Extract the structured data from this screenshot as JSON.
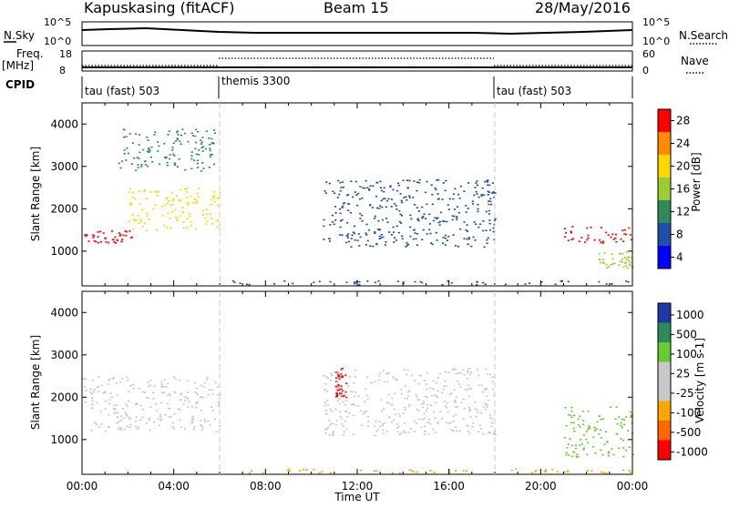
{
  "header": {
    "station": "Kapuskasing (fitACF)",
    "beam": "Beam 15",
    "date": "28/May/2016"
  },
  "strip_panels": {
    "nsky_label": "N.Sky",
    "nsky_ticks": [
      "10^5",
      "10^0"
    ],
    "nsearch_label": "N.Search",
    "nsearch_ticks": [
      "10^5",
      "10^0"
    ],
    "freq_label": "Freq.",
    "freq_unit": "[MHz]",
    "freq_ticks": [
      "18",
      "8"
    ],
    "nave_label": "Nave",
    "nave_ticks": [
      "60",
      "0"
    ],
    "cpid_label": "CPID",
    "cpid_segments": [
      {
        "label": "tau (fast) 503",
        "start_h": 0,
        "end_h": 6
      },
      {
        "label": "themis 3300",
        "start_h": 6,
        "end_h": 18
      },
      {
        "label": "tau (fast) 503",
        "start_h": 18,
        "end_h": 24
      }
    ]
  },
  "chart_data": [
    {
      "type": "heatmap",
      "name": "power-panel",
      "ylabel": "Slant Range [km]",
      "xlabel": "Time UT",
      "xlim_hours": [
        0,
        24
      ],
      "ylim": [
        180,
        4500
      ],
      "y_ticks": [
        1000,
        2000,
        3000,
        4000
      ],
      "x_ticks": [
        "00:00",
        "04:00",
        "08:00",
        "12:00",
        "16:00",
        "20:00",
        "00:00"
      ],
      "colorbar": {
        "label": "Power [dB]",
        "tick_labels": [
          "28",
          "24",
          "20",
          "16",
          "12",
          "8",
          "4"
        ],
        "colors": [
          "#ff0000",
          "#ff8c00",
          "#ffd700",
          "#9acd32",
          "#2e8b57",
          "#1f4fa8",
          "#0000ff"
        ]
      },
      "features": [
        {
          "t_start": 0.0,
          "t_end": 2.2,
          "range_km": [
            1180,
            1500
          ],
          "power_db": 28
        },
        {
          "t_start": 2.0,
          "t_end": 6.0,
          "range_km": [
            1500,
            2500
          ],
          "power_db": 20
        },
        {
          "t_start": 1.5,
          "t_end": 5.8,
          "range_km": [
            2900,
            3900
          ],
          "power_db": 12
        },
        {
          "t_start": 6.5,
          "t_end": 24.0,
          "range_km": [
            220,
            320
          ],
          "power_db": 8
        },
        {
          "t_start": 10.5,
          "t_end": 18.0,
          "range_km": [
            1100,
            2700
          ],
          "power_db": 8
        },
        {
          "t_start": 21.0,
          "t_end": 24.0,
          "range_km": [
            1200,
            1600
          ],
          "power_db": 28
        },
        {
          "t_start": 22.5,
          "t_end": 24.0,
          "range_km": [
            600,
            1000
          ],
          "power_db": 16
        }
      ]
    },
    {
      "type": "heatmap",
      "name": "velocity-panel",
      "ylabel": "Slant Range [km]",
      "xlabel": "Time UT",
      "xlim_hours": [
        0,
        24
      ],
      "ylim": [
        180,
        4500
      ],
      "y_ticks": [
        1000,
        2000,
        3000,
        4000
      ],
      "x_ticks": [
        "00:00",
        "04:00",
        "08:00",
        "12:00",
        "16:00",
        "20:00",
        "00:00"
      ],
      "colorbar": {
        "label": "Velocity [m s-1]",
        "tick_labels": [
          "1000",
          "500",
          "100",
          "25",
          "-25",
          "-100",
          "-500",
          "-1000"
        ],
        "colors": [
          "#1f3aa8",
          "#2e8b57",
          "#66cc33",
          "#c8c8c8",
          "#c8c8c8",
          "#ffa500",
          "#ff6600",
          "#ff0000"
        ]
      },
      "features": [
        {
          "t_start": 0.0,
          "t_end": 6.0,
          "range_km": [
            1200,
            2500
          ],
          "velocity": 0
        },
        {
          "t_start": 6.5,
          "t_end": 24.0,
          "range_km": [
            220,
            320
          ],
          "velocity": -100
        },
        {
          "t_start": 11.0,
          "t_end": 11.5,
          "range_km": [
            2000,
            2700
          ],
          "velocity": -1000
        },
        {
          "t_start": 10.5,
          "t_end": 18.0,
          "range_km": [
            1100,
            2700
          ],
          "velocity": 0
        },
        {
          "t_start": 21.0,
          "t_end": 24.0,
          "range_km": [
            600,
            1800
          ],
          "velocity": 100
        }
      ]
    }
  ],
  "colors": {
    "frame": "#000000",
    "dashed_marker": "#c8c8c8"
  }
}
